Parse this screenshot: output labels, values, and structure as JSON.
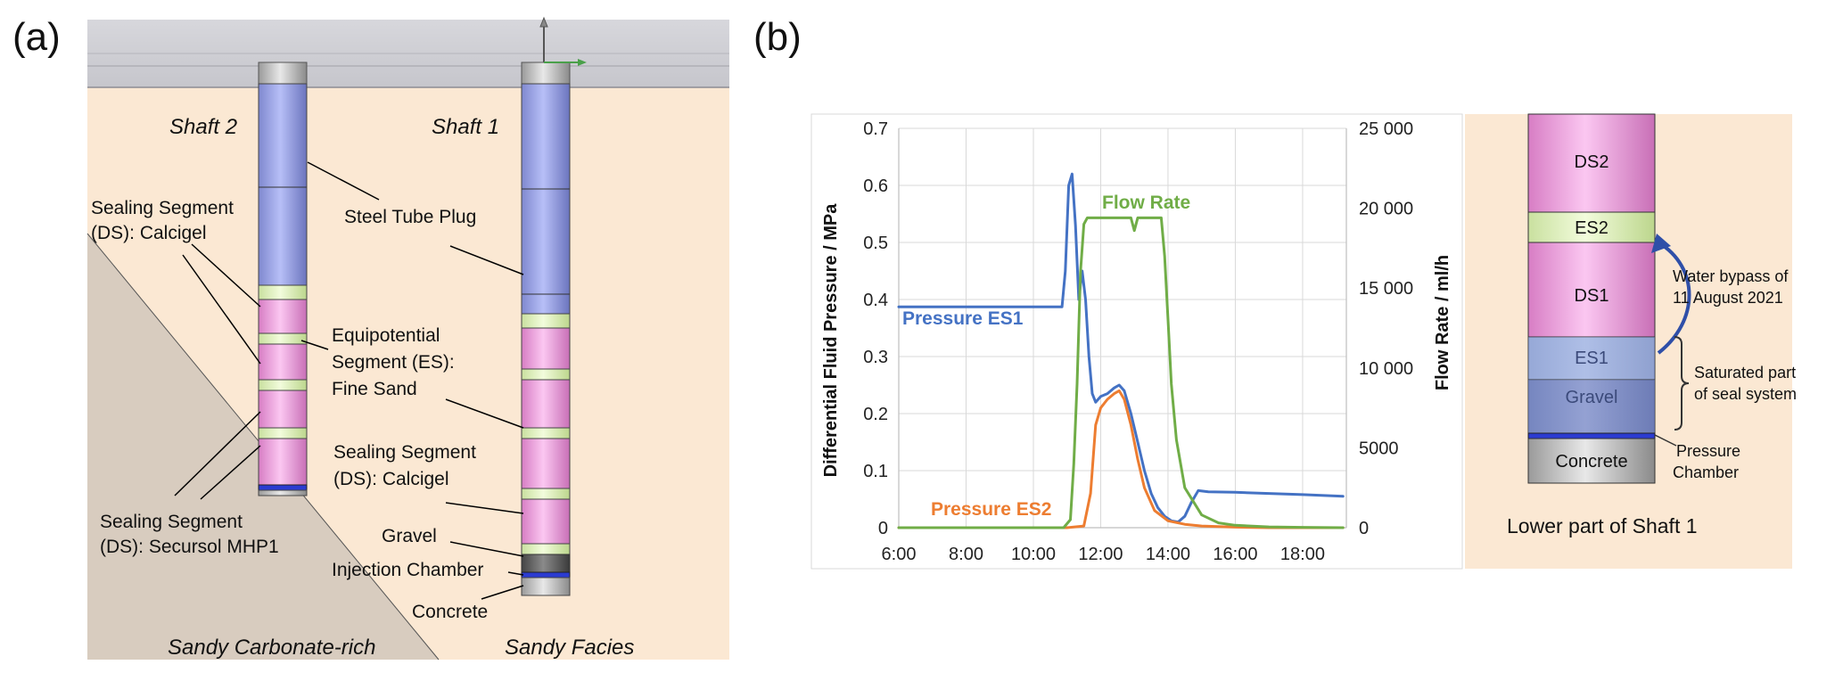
{
  "panel_a": {
    "tag": "(a)",
    "shaft2": "Shaft 2",
    "shaft1": "Shaft 1",
    "labels": {
      "ds_calcigel_top_1": "Sealing Segment",
      "ds_calcigel_top_2": "(DS): Calcigel",
      "steel_tube": "Steel Tube Plug",
      "es_1": "Equipotential",
      "es_2": "Segment (ES):",
      "es_3": "Fine Sand",
      "ds_calcigel_mid_1": "Sealing Segment",
      "ds_calcigel_mid_2": "(DS): Calcigel",
      "ds_secursol_1": "Sealing Segment",
      "ds_secursol_2": "(DS): Secursol MHP1",
      "gravel": "Gravel",
      "injection": "Injection Chamber",
      "concrete": "Concrete"
    },
    "facies_left": "Sandy Carbonate-rich",
    "facies_right": "Sandy Facies"
  },
  "panel_b": {
    "tag": "(b)",
    "chart_data": {
      "type": "line",
      "xlabel": "",
      "ylabel": "Differential Fluid Pressure / MPa",
      "y2label": "Flow Rate / ml/h",
      "x_ticks": [
        "6:00",
        "8:00",
        "10:00",
        "12:00",
        "14:00",
        "16:00",
        "18:00"
      ],
      "xlim": [
        6,
        19.3
      ],
      "y_ticks": [
        "0",
        "0.1",
        "0.2",
        "0.3",
        "0.4",
        "0.5",
        "0.6",
        "0.7"
      ],
      "ylim": [
        0,
        0.7
      ],
      "y2_ticks": [
        "0",
        "5000",
        "10 000",
        "15 000",
        "20 000",
        "25 000"
      ],
      "y2lim": [
        0,
        25000
      ],
      "grid": true,
      "series": [
        {
          "name": "Pressure ES1",
          "axis": "left",
          "color": "#4472c4",
          "x": [
            6.0,
            8.0,
            10.0,
            10.85,
            10.95,
            11.05,
            11.15,
            11.25,
            11.35,
            11.45,
            11.55,
            11.65,
            11.75,
            11.85,
            12.0,
            12.2,
            12.4,
            12.55,
            12.7,
            12.9,
            13.1,
            13.3,
            13.5,
            13.7,
            13.9,
            14.1,
            14.3,
            14.5,
            14.7,
            14.9,
            15.2,
            16.0,
            17.0,
            18.0,
            19.2
          ],
          "y": [
            0.387,
            0.387,
            0.387,
            0.387,
            0.45,
            0.6,
            0.62,
            0.53,
            0.4,
            0.45,
            0.4,
            0.3,
            0.235,
            0.22,
            0.23,
            0.235,
            0.245,
            0.25,
            0.24,
            0.2,
            0.15,
            0.1,
            0.06,
            0.035,
            0.02,
            0.012,
            0.01,
            0.02,
            0.045,
            0.065,
            0.063,
            0.062,
            0.06,
            0.058,
            0.055
          ]
        },
        {
          "name": "Pressure ES2",
          "axis": "left",
          "color": "#ed7d31",
          "x": [
            6.0,
            8.0,
            10.0,
            11.0,
            11.5,
            11.7,
            11.85,
            12.0,
            12.2,
            12.4,
            12.55,
            12.7,
            12.9,
            13.1,
            13.3,
            13.6,
            14.0,
            14.5,
            15.0,
            16.0,
            17.0,
            18.0,
            19.2
          ],
          "y": [
            0,
            0,
            0,
            0,
            0.003,
            0.06,
            0.18,
            0.21,
            0.225,
            0.235,
            0.24,
            0.225,
            0.18,
            0.12,
            0.07,
            0.03,
            0.012,
            0.006,
            0.003,
            0.001,
            0,
            0,
            0
          ]
        },
        {
          "name": "Flow Rate",
          "axis": "right",
          "color": "#70ad47",
          "x": [
            6.0,
            8.0,
            10.0,
            10.9,
            11.1,
            11.2,
            11.3,
            11.4,
            11.5,
            11.6,
            12.0,
            12.5,
            12.9,
            13.0,
            13.1,
            13.2,
            13.3,
            13.6,
            13.8,
            13.9,
            14.0,
            14.1,
            14.25,
            14.5,
            15.0,
            15.5,
            16.0,
            17.0,
            18.0,
            19.2
          ],
          "y": [
            0,
            0,
            0,
            0,
            500,
            4000,
            9000,
            16000,
            19000,
            19400,
            19400,
            19400,
            19400,
            18600,
            19400,
            19400,
            19400,
            19400,
            19400,
            17000,
            13000,
            9000,
            5500,
            2500,
            800,
            300,
            150,
            50,
            20,
            0
          ]
        }
      ]
    },
    "series_labels": {
      "es1": "Pressure ES1",
      "es2": "Pressure ES2",
      "flow": "Flow Rate"
    },
    "schematic": {
      "ds2": "DS2",
      "es2": "ES2",
      "ds1": "DS1",
      "es1": "ES1",
      "gravel": "Gravel",
      "concrete": "Concrete",
      "bypass_1": "Water bypass of",
      "bypass_2": "11 August 2021",
      "saturated_1": "Saturated part",
      "saturated_2": "of seal system",
      "pressure_1": "Pressure",
      "pressure_2": "Chamber",
      "caption": "Lower part of Shaft 1"
    },
    "colors": {
      "es1": "#4472c4",
      "es2": "#ed7d31",
      "flow": "#70ad47",
      "ds": "#f7a8e6",
      "es": "#e6f7c4",
      "steel": "#9aa6ee",
      "ground": "#fbe8d3",
      "rock": "#d8ccbf"
    }
  }
}
